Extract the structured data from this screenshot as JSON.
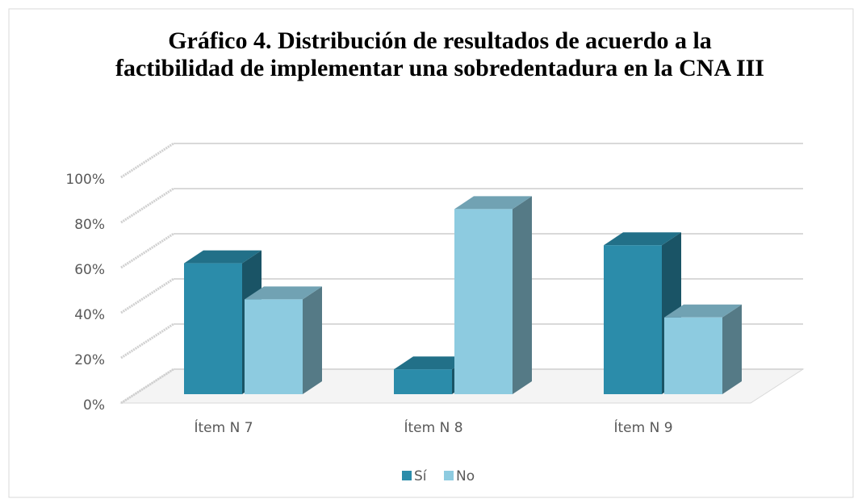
{
  "chart_data": {
    "type": "bar3d",
    "title": "Gráfico 4. Distribución de resultados de acuerdo a la factibilidad de implementar una sobredentadura en la CNA III",
    "categories": [
      "Ítem N 7",
      "Ítem N 8",
      "Ítem N 9"
    ],
    "series": [
      {
        "name": "Sí",
        "color": "#2b8caa",
        "values": [
          58,
          11,
          66
        ]
      },
      {
        "name": "No",
        "color": "#8dcbe0",
        "values": [
          42,
          82,
          34
        ]
      }
    ],
    "ylim": [
      0,
      100
    ],
    "yticks": [
      {
        "value": 0,
        "label": "0%"
      },
      {
        "value": 20,
        "label": "20%"
      },
      {
        "value": 40,
        "label": "40%"
      },
      {
        "value": 60,
        "label": "60%"
      },
      {
        "value": 80,
        "label": "80%"
      },
      {
        "value": 100,
        "label": "100%"
      }
    ],
    "grid": true,
    "legend": "bottom"
  }
}
